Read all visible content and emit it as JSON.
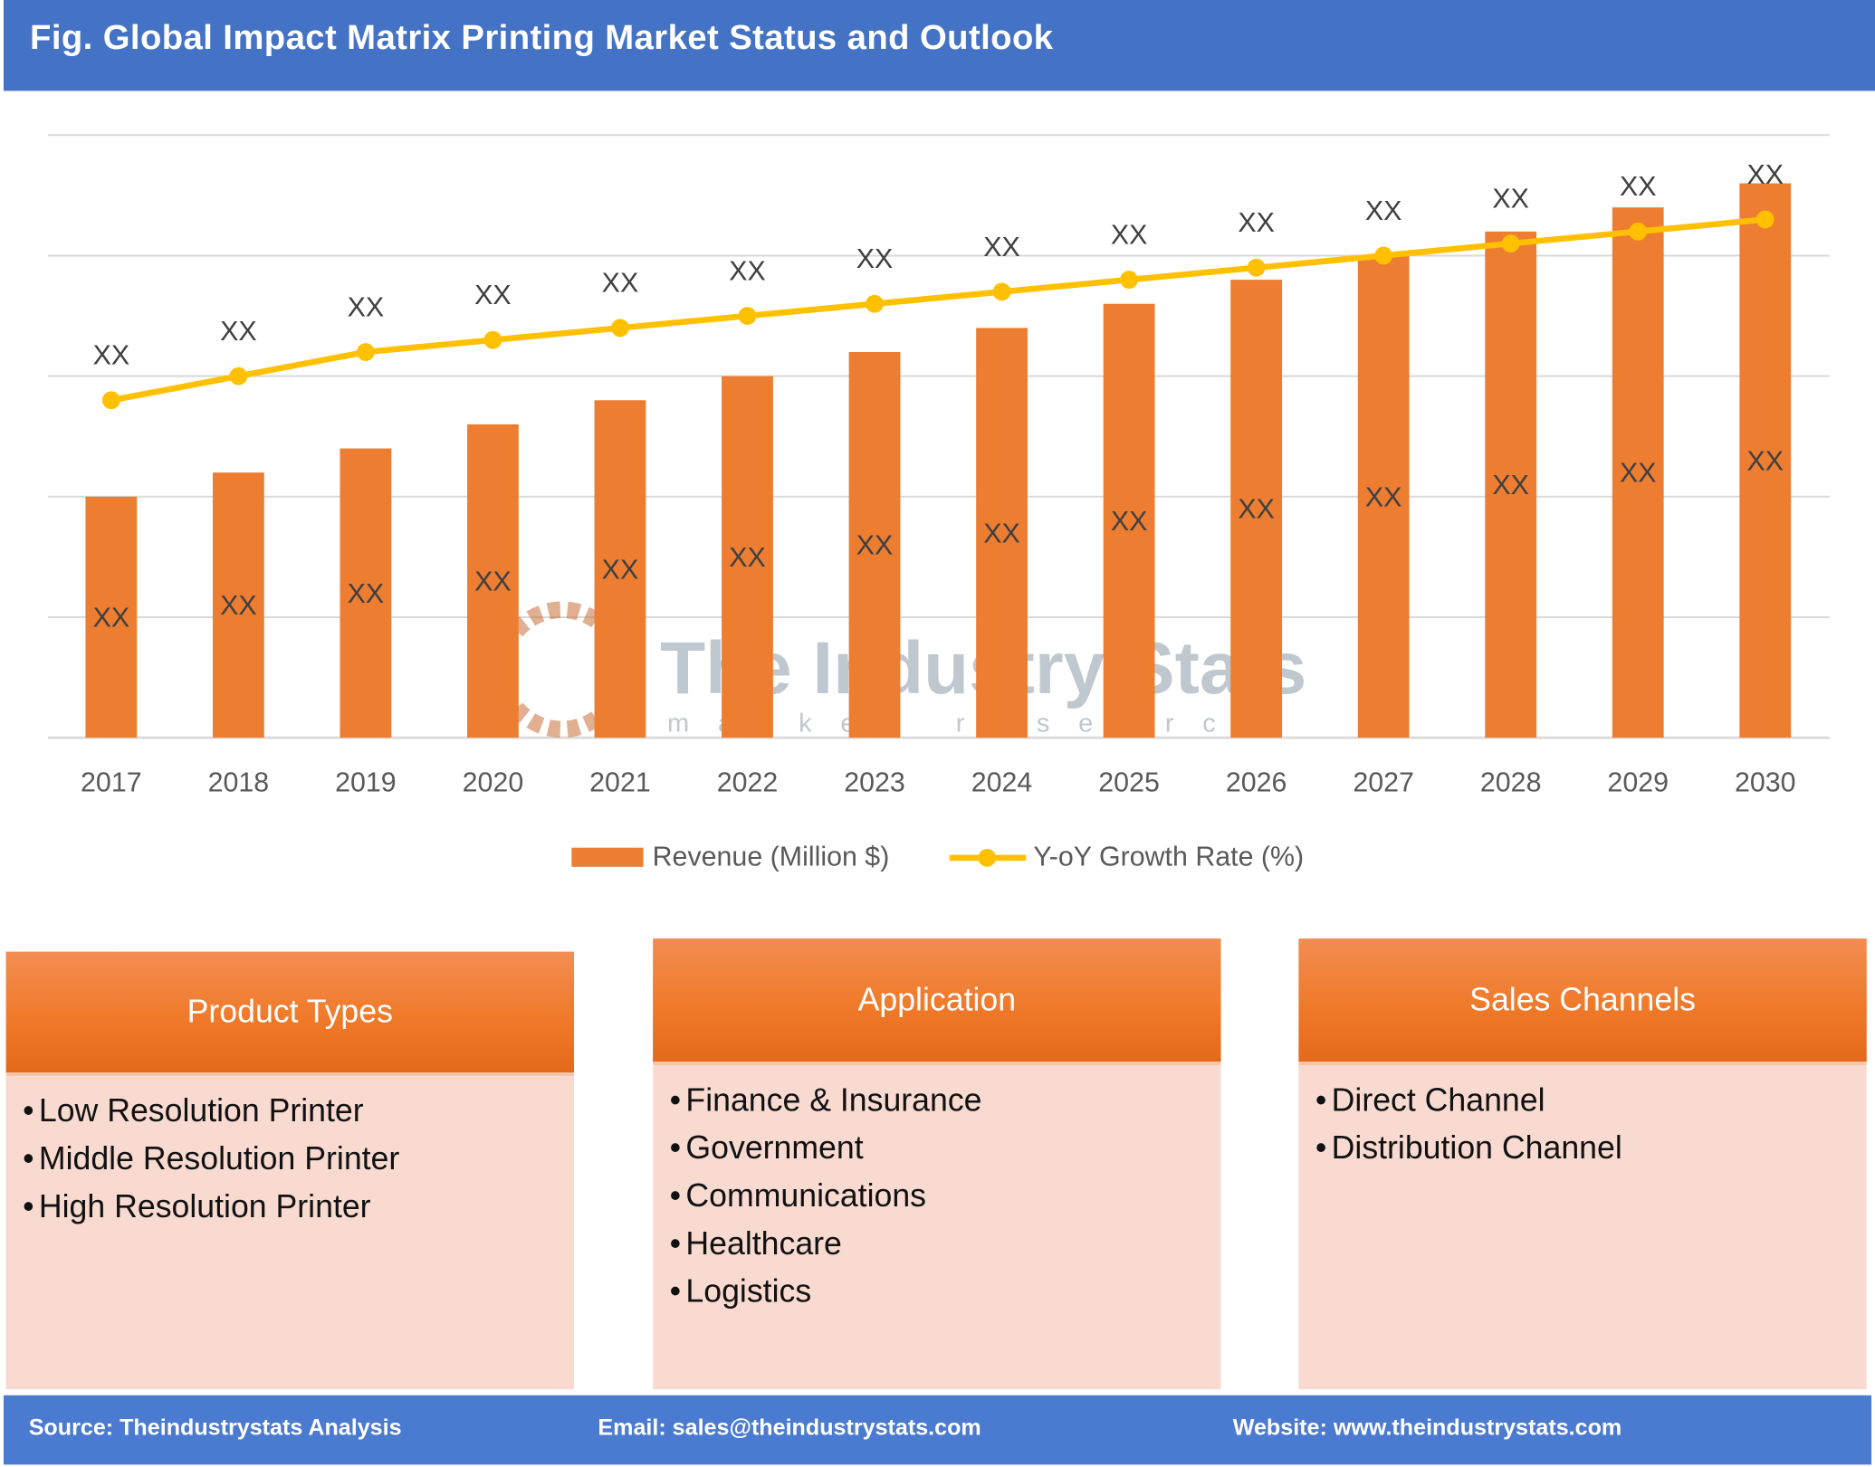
{
  "title": "Fig. Global Impact Matrix Printing Market Status and Outlook",
  "chart_data": {
    "type": "bar+line",
    "categories": [
      "2017",
      "2018",
      "2019",
      "2020",
      "2021",
      "2022",
      "2023",
      "2024",
      "2025",
      "2026",
      "2027",
      "2028",
      "2029",
      "2030"
    ],
    "series": [
      {
        "name": "Revenue (Million $)",
        "type": "bar",
        "color": "#ed7d31",
        "values": [
          2.0,
          2.2,
          2.4,
          2.6,
          2.8,
          3.0,
          3.2,
          3.4,
          3.6,
          3.8,
          4.0,
          4.2,
          4.4,
          4.6
        ],
        "data_labels": [
          "XX",
          "XX",
          "XX",
          "XX",
          "XX",
          "XX",
          "XX",
          "XX",
          "XX",
          "XX",
          "XX",
          "XX",
          "XX",
          "XX"
        ]
      },
      {
        "name": "Y-oY Growth Rate (%)",
        "type": "line",
        "color": "#ffc000",
        "values": [
          2.8,
          3.0,
          3.2,
          3.3,
          3.4,
          3.5,
          3.6,
          3.7,
          3.8,
          3.9,
          4.0,
          4.1,
          4.2,
          4.3
        ],
        "data_labels": [
          "XX",
          "XX",
          "XX",
          "XX",
          "XX",
          "XX",
          "XX",
          "XX",
          "XX",
          "XX",
          "XX",
          "XX",
          "XX",
          "XX"
        ]
      }
    ],
    "ylim": [
      0,
      5
    ],
    "y_axis_labels": "none",
    "grid": true,
    "legend": "bottom"
  },
  "watermark": {
    "main": "The Industry Stats",
    "sub": "market research"
  },
  "boxes": [
    {
      "title": "Product Types",
      "items": [
        "Low Resolution Printer",
        "Middle Resolution Printer",
        "High Resolution Printer"
      ]
    },
    {
      "title": "Application",
      "items": [
        "Finance & Insurance",
        "Government",
        "Communications",
        "Healthcare",
        "Logistics"
      ]
    },
    {
      "title": "Sales Channels",
      "items": [
        "Direct Channel",
        "Distribution Channel"
      ]
    }
  ],
  "footer": {
    "source": "Source: Theindustrystats Analysis",
    "email": "Email: sales@theindustrystats.com",
    "website": "Website: www.theindustrystats.com"
  }
}
